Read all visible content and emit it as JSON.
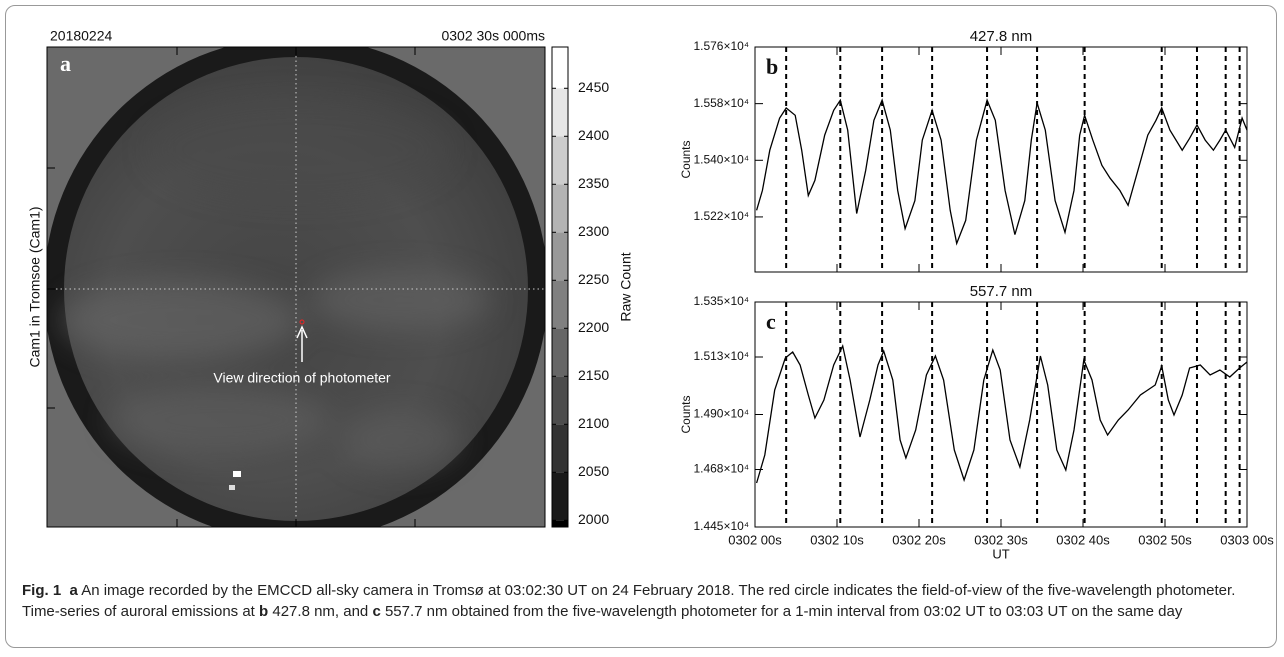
{
  "image_panel": {
    "label": "a",
    "date": "20180224",
    "time": "0302 30s 000ms",
    "ylabel": "Cam1 in Tromsoe (Cam1)",
    "annotation": "View direction of photometer",
    "colorbar": {
      "label": "Raw Count",
      "lim": [
        1993,
        2493
      ],
      "ticks": [
        2000,
        2050,
        2100,
        2150,
        2200,
        2250,
        2300,
        2350,
        2400,
        2450
      ]
    }
  },
  "chart_data": [
    {
      "type": "line",
      "panel": "b",
      "title": "427.8 nm",
      "ylabel": "Counts",
      "color": "#000000",
      "x": [
        0.2,
        0.9,
        1.8,
        3.0,
        3.8,
        4.9,
        5.7,
        6.5,
        7.3,
        8.5,
        9.6,
        10.4,
        11.3,
        12.4,
        13.5,
        14.5,
        15.5,
        16.5,
        17.4,
        18.3,
        19.5,
        20.4,
        21.6,
        22.7,
        23.8,
        24.6,
        25.7,
        27.0,
        28.3,
        29.3,
        30.5,
        31.7,
        32.9,
        33.7,
        34.4,
        35.4,
        36.6,
        37.8,
        38.9,
        39.6,
        40.2,
        41.2,
        42.3,
        43.3,
        44.5,
        45.5,
        46.7,
        47.9,
        48.9,
        49.6,
        50.6,
        52.1,
        53.0,
        53.9,
        54.9,
        55.9,
        56.7,
        57.4,
        58.5,
        59.4,
        60.0
      ],
      "values": [
        15241,
        15304,
        15432,
        15534,
        15566,
        15543,
        15432,
        15288,
        15336,
        15480,
        15559,
        15591,
        15496,
        15231,
        15368,
        15527,
        15591,
        15496,
        15304,
        15183,
        15272,
        15464,
        15559,
        15464,
        15241,
        15136,
        15209,
        15464,
        15591,
        15527,
        15304,
        15164,
        15272,
        15464,
        15582,
        15496,
        15272,
        15171,
        15304,
        15480,
        15543,
        15464,
        15384,
        15343,
        15304,
        15257,
        15368,
        15480,
        15527,
        15566,
        15496,
        15432,
        15470,
        15512,
        15464,
        15432,
        15464,
        15496,
        15441,
        15534,
        15496
      ],
      "xlim": [
        0,
        60
      ],
      "xticks": [
        0,
        10,
        20,
        30,
        40,
        50,
        60
      ],
      "ylim": [
        15045,
        15760
      ],
      "yticks": [
        {
          "value": 15220,
          "label": "1.522×10⁴"
        },
        {
          "value": 15400,
          "label": "1.540×10⁴"
        },
        {
          "value": 15580,
          "label": "1.558×10⁴"
        },
        {
          "value": 15760,
          "label": "1.576×10⁴"
        }
      ],
      "vlines": [
        3.8,
        10.4,
        15.5,
        21.6,
        28.3,
        34.4,
        40.2,
        49.6,
        53.9,
        57.4,
        59.1
      ]
    },
    {
      "type": "line",
      "panel": "c",
      "title": "557.7 nm",
      "ylabel": "Counts",
      "xlabel": "UT",
      "color": "#000000",
      "x": [
        0.2,
        1.2,
        2.4,
        3.7,
        4.6,
        5.5,
        6.5,
        7.3,
        8.4,
        9.6,
        10.7,
        11.6,
        12.8,
        14.0,
        15.0,
        15.7,
        16.8,
        17.7,
        18.4,
        19.6,
        20.9,
        22.0,
        23.0,
        24.3,
        25.5,
        26.7,
        27.9,
        29.0,
        29.9,
        31.1,
        32.3,
        33.5,
        34.8,
        35.7,
        36.8,
        37.9,
        38.9,
        40.1,
        41.1,
        42.1,
        43.0,
        44.3,
        45.5,
        47.0,
        48.8,
        49.6,
        50.4,
        51.1,
        52.1,
        53.0,
        54.3,
        55.5,
        56.7,
        57.9,
        59.1,
        60.0
      ],
      "values": [
        14626,
        14738,
        14998,
        15126,
        15150,
        15098,
        14978,
        14886,
        14958,
        15098,
        15174,
        15038,
        14810,
        14958,
        15098,
        15154,
        15038,
        14798,
        14726,
        14838,
        15058,
        15134,
        15038,
        14758,
        14638,
        14758,
        15038,
        15158,
        15078,
        14798,
        14690,
        14878,
        15134,
        15018,
        14758,
        14678,
        14838,
        15118,
        15038,
        14878,
        14818,
        14878,
        14918,
        14978,
        15018,
        15094,
        14958,
        14898,
        14978,
        15086,
        15098,
        15058,
        15078,
        15050,
        15086,
        15110
      ],
      "xlim": [
        0,
        60
      ],
      "xticks": [
        {
          "value": 0,
          "label": "0302 00s"
        },
        {
          "value": 10,
          "label": "0302 10s"
        },
        {
          "value": 20,
          "label": "0302 20s"
        },
        {
          "value": 30,
          "label": "0302 30s"
        },
        {
          "value": 40,
          "label": "0302 40s"
        },
        {
          "value": 50,
          "label": "0302 50s"
        },
        {
          "value": 60,
          "label": "0303 00s"
        }
      ],
      "ylim": [
        14450,
        15350
      ],
      "yticks": [
        {
          "value": 14450,
          "label": "1.445×10⁴"
        },
        {
          "value": 14680,
          "label": "1.468×10⁴"
        },
        {
          "value": 14900,
          "label": "1.490×10⁴"
        },
        {
          "value": 15130,
          "label": "1.513×10⁴"
        },
        {
          "value": 15350,
          "label": "1.535×10⁴"
        }
      ],
      "vlines": [
        3.8,
        10.4,
        15.5,
        21.6,
        28.3,
        34.4,
        40.2,
        49.6,
        53.9,
        57.4,
        59.1
      ]
    }
  ],
  "caption": {
    "label": "Fig. 1",
    "a": "a",
    "text_a": " An image recorded by the EMCCD all-sky camera in Tromsø at 03:02:30 UT on 24 February 2018. The red circle indicates the field-of-view of the five-wavelength photometer. Time-series of auroral emissions at ",
    "b": "b",
    "text_b": " 427.8 nm, and ",
    "c": "c",
    "text_c": " 557.7 nm obtained from the five-wavelength photometer for a 1-min interval from 03:02 UT to 03:03 UT on the same day"
  }
}
